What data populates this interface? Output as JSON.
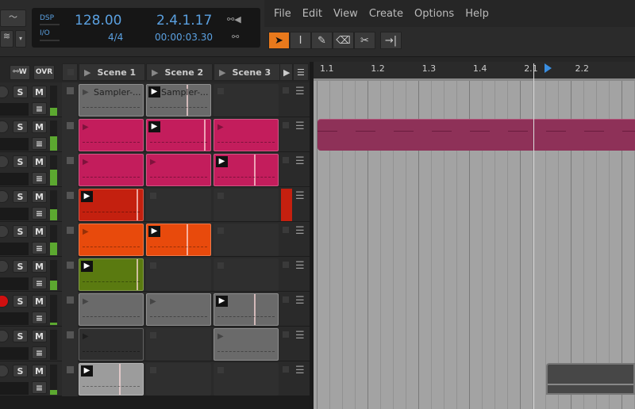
{
  "transport": {
    "dsp_label": "DSP",
    "io_label": "I/O",
    "tempo": "128.00",
    "time_signature": "4/4",
    "position_beats": "2.4.1.17",
    "position_time": "00:00:03.30"
  },
  "menu": [
    "File",
    "Edit",
    "View",
    "Create",
    "Options",
    "Help"
  ],
  "tools": [
    {
      "icon": "pointer-icon",
      "glyph": "➤",
      "active": true
    },
    {
      "icon": "text-cursor-icon",
      "glyph": "I"
    },
    {
      "icon": "pencil-icon",
      "glyph": "✎"
    },
    {
      "icon": "eraser-icon",
      "glyph": "⌫"
    },
    {
      "icon": "knife-icon",
      "glyph": "✂"
    },
    {
      "icon": "follow-playhead-icon",
      "glyph": "→|"
    }
  ],
  "mixer_header": {
    "write_label": "W",
    "ovr_label": "OVR"
  },
  "scenes": [
    "Scene 1",
    "Scene 2",
    "Scene 3"
  ],
  "ruler": [
    "1.1",
    "1.2",
    "1.3",
    "1.4",
    "2.1",
    "2.2"
  ],
  "track_buttons": {
    "solo": "S",
    "mute": "M"
  },
  "colors": {
    "accent": "#e8791c",
    "pink": "#c31d5c",
    "red": "#c4200f",
    "orange": "#e84a0c",
    "green": "#5a7a10",
    "gray": "#6a6a6a",
    "lightgray": "#9c9c9c",
    "dark": "#2f2f2f",
    "record": "#d01010",
    "display_text": "#5aa0e0"
  },
  "rows": [
    {
      "armed": false,
      "clips": [
        {
          "color": "gray",
          "name": "Sampler-...",
          "playing": false
        },
        {
          "color": "gray",
          "name": "Sampler-...",
          "playing": true
        },
        null
      ]
    },
    {
      "armed": false,
      "clips": [
        {
          "color": "pink",
          "playing": false
        },
        {
          "color": "pink",
          "playing": true
        },
        {
          "color": "pink",
          "playing": false
        }
      ]
    },
    {
      "armed": false,
      "clips": [
        {
          "color": "pink",
          "playing": false
        },
        {
          "color": "pink",
          "playing": false
        },
        {
          "color": "pink",
          "playing": true
        }
      ]
    },
    {
      "armed": false,
      "clips": [
        {
          "color": "red",
          "playing": true
        },
        null,
        null
      ],
      "extra": "red"
    },
    {
      "armed": false,
      "clips": [
        {
          "color": "orange",
          "playing": false
        },
        {
          "color": "orange",
          "playing": true
        },
        null
      ]
    },
    {
      "armed": false,
      "clips": [
        {
          "color": "green",
          "playing": true
        },
        null,
        null
      ]
    },
    {
      "armed": true,
      "clips": [
        {
          "color": "gray",
          "playing": false
        },
        {
          "color": "gray",
          "playing": false
        },
        {
          "color": "gray",
          "playing": true
        }
      ]
    },
    {
      "armed": false,
      "clips": [
        {
          "color": "dark",
          "playing": false
        },
        null,
        {
          "color": "gray",
          "playing": false
        }
      ]
    },
    {
      "armed": false,
      "clips": [
        {
          "color": "lightgray",
          "playing": true
        },
        null,
        null
      ]
    }
  ]
}
